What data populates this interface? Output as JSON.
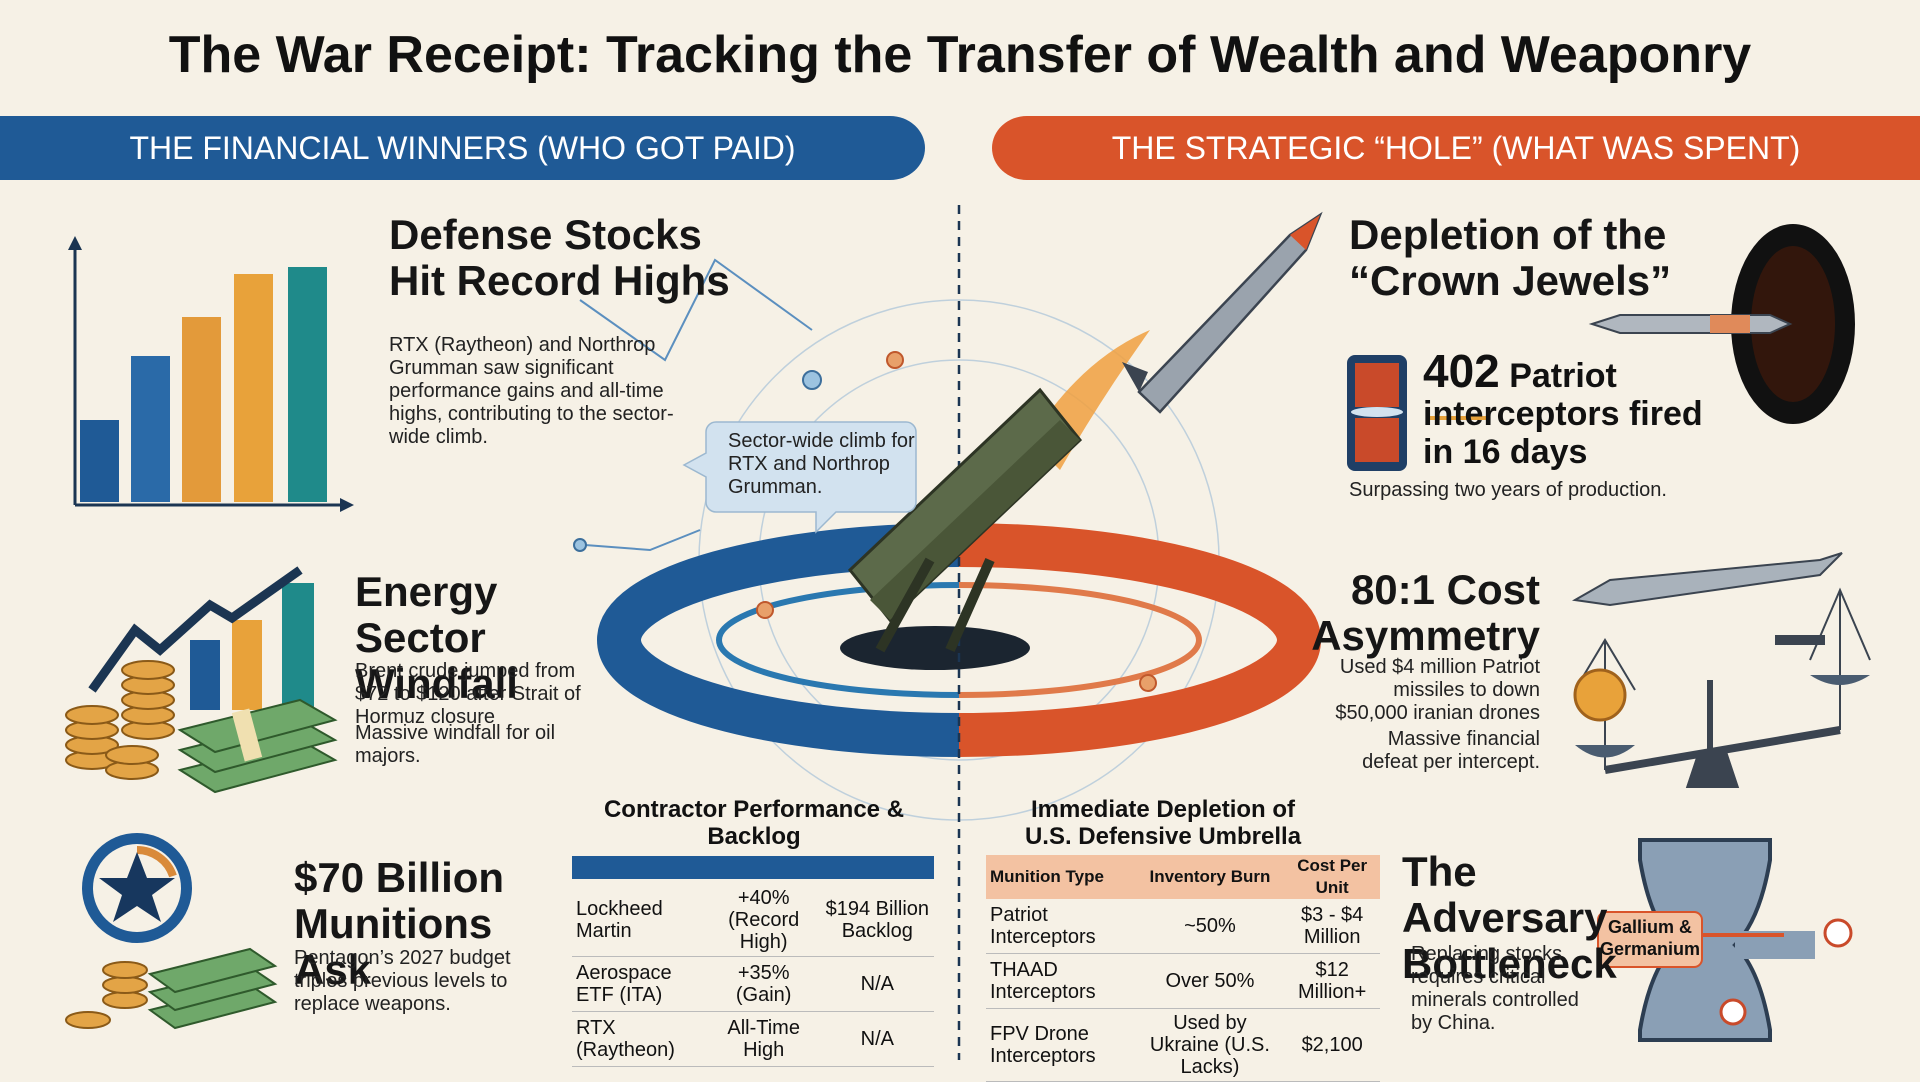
{
  "header": {
    "title": "The War Receipt: Tracking the Transfer of Wealth and Weaponry"
  },
  "left": {
    "banner": "THE FINANCIAL WINNERS (WHO GOT PAID)",
    "sections": [
      {
        "heading": "Defense Stocks Hit Record Highs",
        "body": [
          "RTX (Raytheon) and Northrop Grumman saw significant performance gains and all-time highs, contributing to the sector-wide climb."
        ]
      },
      {
        "heading": "Energy Sector Windfall",
        "body": [
          "Brent crude jumped from $72 to $120 after Strait of Hormuz closure",
          "Massive windfall for oil majors."
        ]
      },
      {
        "heading": "$70 Billion Munitions Ask",
        "body": [
          "Pentagon’s 2027 budget triples previous levels to replace weapons."
        ]
      }
    ],
    "callout": "Sector-wide climb for RTX and Northrop Grumman.",
    "table": {
      "title": "Contractor Performance & Backlog",
      "rows": [
        [
          "Lockheed Martin",
          "+40% (Record High)",
          "$194 Billion Backlog"
        ],
        [
          "Aerospace ETF (ITA)",
          "+35% (Gain)",
          "N/A"
        ],
        [
          "RTX (Raytheon)",
          "All-Time High",
          "N/A"
        ]
      ]
    }
  },
  "right": {
    "banner": "THE STRATEGIC “HOLE” (WHAT WAS SPENT)",
    "depletion": {
      "heading": "Depletion of the “Crown Jewels”",
      "stat_number": "402",
      "stat_text": "Patriot interceptors fired in 16 days",
      "note": "Surpassing two years of production."
    },
    "asymmetry": {
      "heading": "80:1 Cost Asymmetry",
      "body": [
        "Used $4 million Patriot missiles to down $50,000 iranian drones",
        "Massive financial defeat per intercept."
      ]
    },
    "table": {
      "title": "Immediate Depletion of U.S. Defensive Umbrella",
      "headers": [
        "Munition Type",
        "Inventory Burn",
        "Cost Per Unit"
      ],
      "rows": [
        [
          "Patriot Interceptors",
          "~50%",
          "$3 - $4 Million"
        ],
        [
          "THAAD Interceptors",
          "Over 50%",
          "$12 Million+"
        ],
        [
          "FPV Drone Interceptors",
          "Used by Ukraine (U.S. Lacks)",
          "$2,100"
        ]
      ]
    },
    "bottleneck": {
      "heading": "The Adversary Bottleneck",
      "body": "Replacing stocks requires critical minerals controlled by China.",
      "label": "Gallium & Germanium"
    }
  }
}
